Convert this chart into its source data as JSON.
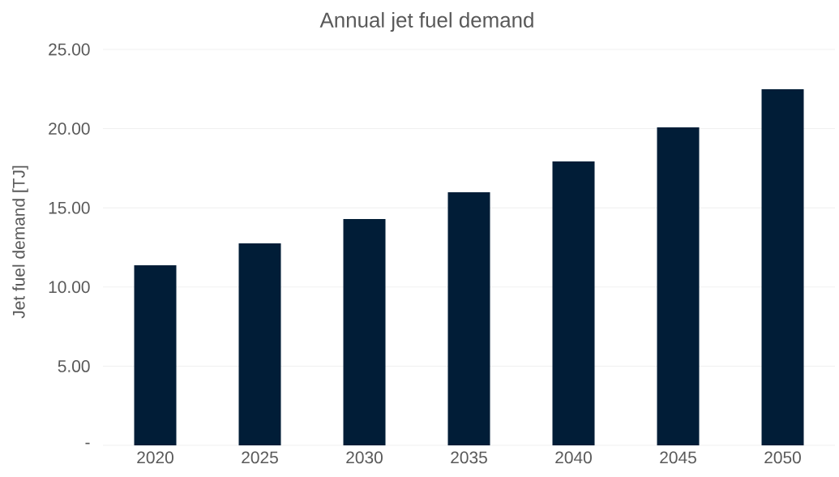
{
  "chart_data": {
    "type": "bar",
    "title": "Annual jet fuel demand",
    "ylabel": "Jet fuel demand [TJ]",
    "categories": [
      "2020",
      "2025",
      "2030",
      "2035",
      "2040",
      "2045",
      "2050"
    ],
    "values": [
      11.37,
      12.76,
      14.29,
      15.98,
      17.93,
      20.08,
      22.49
    ],
    "color": "#011d37",
    "ylim": [
      0,
      25
    ],
    "yticks": [
      {
        "value": 0,
        "label": "-"
      },
      {
        "value": 5,
        "label": "5.00"
      },
      {
        "value": 10,
        "label": "10.00"
      },
      {
        "value": 15,
        "label": "15.00"
      },
      {
        "value": 20,
        "label": "20.00"
      },
      {
        "value": 25,
        "label": "25.00"
      }
    ],
    "grid": "y"
  }
}
